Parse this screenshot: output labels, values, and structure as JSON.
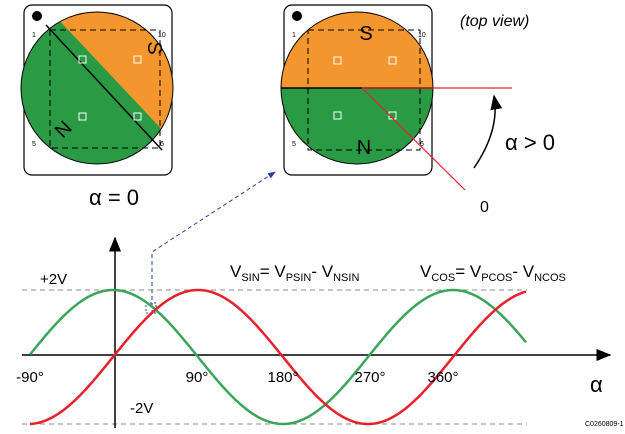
{
  "left_chip": {
    "north": "N",
    "south": "S",
    "pins": [
      "1",
      "5",
      "10",
      "6"
    ],
    "caption": "α = 0"
  },
  "right_chip": {
    "north": "N",
    "south": "S",
    "pins": [
      "1",
      "5",
      "10",
      "6"
    ],
    "view": "(top view)",
    "angle_label": "α > 0",
    "zero_label": "0"
  },
  "sin_formula": [
    "V",
    "SIN",
    "= V",
    "PSIN",
    "- V",
    "NSIN"
  ],
  "cos_formula": [
    "V",
    "COS",
    "= V",
    "PCOS",
    "- V",
    "NCOS"
  ],
  "y_labels": {
    "top": "+2V",
    "bottom": "-2V"
  },
  "x_ticks": [
    "-90°",
    "90°",
    "180°",
    "270°",
    "360°"
  ],
  "x_axis_label": "α",
  "code": "C0260809-1"
}
